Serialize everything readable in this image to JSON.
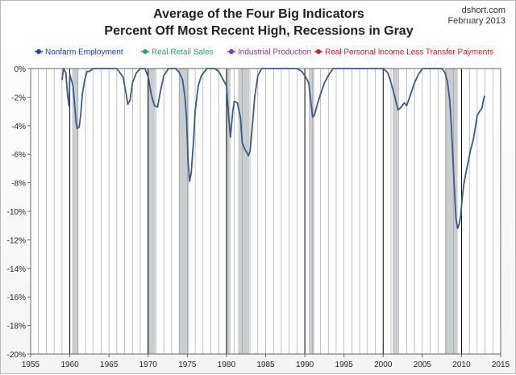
{
  "header": {
    "title_line1": "Average of the Four Big Indicators",
    "title_line2": "Percent Off Most Recent High, Recessions in Gray",
    "source": "dshort.com",
    "date": "February 2013"
  },
  "chart_data": {
    "type": "line",
    "xlim": [
      1955,
      2015
    ],
    "ylim": [
      -20,
      0
    ],
    "x_ticks": [
      1955,
      1960,
      1965,
      1970,
      1975,
      1980,
      1985,
      1990,
      1995,
      2000,
      2005,
      2010,
      2015
    ],
    "x_tick_labels": [
      "1955",
      "1960",
      "1965",
      "1970",
      "1975",
      "1980",
      "1985",
      "1990",
      "1995",
      "2000",
      "2005",
      "2010",
      "2015"
    ],
    "y_ticks": [
      0,
      -2,
      -4,
      -6,
      -8,
      -10,
      -12,
      -14,
      -16,
      -18,
      -20
    ],
    "y_tick_labels": [
      "0%",
      "-2%",
      "-4%",
      "-6%",
      "-8%",
      "-10%",
      "-12%",
      "-14%",
      "-16%",
      "-18%",
      "-20%"
    ],
    "grid": "vertical lines each year",
    "legend_position": "top",
    "legend": [
      {
        "name": "Nonfarm Employment",
        "color": "#1f3cc9"
      },
      {
        "name": "Real Retail Sales",
        "color": "#2aa36b"
      },
      {
        "name": "Industrial Production",
        "color": "#7b3fa0"
      },
      {
        "name": "Real Personal Income Less Transfer Payments",
        "color": "#c0262d"
      }
    ],
    "recessions": [
      [
        1960.3,
        1961.1
      ],
      [
        1969.9,
        1970.9
      ],
      [
        1973.9,
        1975.2
      ],
      [
        1980.0,
        1980.5
      ],
      [
        1981.5,
        1982.9
      ],
      [
        1990.5,
        1991.2
      ],
      [
        2001.2,
        2001.9
      ],
      [
        2007.9,
        2009.5
      ]
    ],
    "recession_color": "#c8cdcf",
    "line_color": "#3a5a8c",
    "series": [
      {
        "values": [
          [
            1959.0,
            -0.8
          ],
          [
            1959.2,
            0
          ],
          [
            1959.5,
            -0.3
          ],
          [
            1959.7,
            -1.8
          ],
          [
            1959.9,
            -2.6
          ],
          [
            1960.0,
            -0.4
          ],
          [
            1960.2,
            -0.8
          ],
          [
            1960.4,
            -1.2
          ],
          [
            1960.6,
            -2.4
          ],
          [
            1960.8,
            -3.8
          ],
          [
            1960.95,
            -4.2
          ],
          [
            1961.2,
            -4.1
          ],
          [
            1961.4,
            -3.2
          ],
          [
            1961.6,
            -1.8
          ],
          [
            1961.9,
            -0.8
          ],
          [
            1962.2,
            -0.2
          ],
          [
            1962.5,
            -0.2
          ],
          [
            1963.0,
            0
          ],
          [
            1964.0,
            0
          ],
          [
            1965.0,
            0
          ],
          [
            1966.0,
            0
          ],
          [
            1966.8,
            -0.6
          ],
          [
            1967.2,
            -1.8
          ],
          [
            1967.4,
            -2.5
          ],
          [
            1967.7,
            -2.2
          ],
          [
            1968.0,
            -1.0
          ],
          [
            1968.5,
            -0.3
          ],
          [
            1969.0,
            0
          ],
          [
            1969.6,
            0
          ],
          [
            1970.0,
            -0.6
          ],
          [
            1970.4,
            -1.8
          ],
          [
            1970.8,
            -2.6
          ],
          [
            1971.2,
            -2.7
          ],
          [
            1971.6,
            -1.5
          ],
          [
            1972.0,
            -0.5
          ],
          [
            1972.6,
            0
          ],
          [
            1973.5,
            0
          ],
          [
            1974.0,
            -0.3
          ],
          [
            1974.4,
            -0.8
          ],
          [
            1974.7,
            -2.0
          ],
          [
            1974.9,
            -3.5
          ],
          [
            1975.1,
            -6.5
          ],
          [
            1975.3,
            -7.9
          ],
          [
            1975.5,
            -7.3
          ],
          [
            1975.8,
            -5.0
          ],
          [
            1976.0,
            -3.0
          ],
          [
            1976.4,
            -1.2
          ],
          [
            1976.8,
            -0.5
          ],
          [
            1977.5,
            0
          ],
          [
            1978.5,
            0
          ],
          [
            1979.0,
            -0.2
          ],
          [
            1979.6,
            -0.8
          ],
          [
            1980.0,
            -1.2
          ],
          [
            1980.3,
            -3.5
          ],
          [
            1980.5,
            -4.8
          ],
          [
            1980.8,
            -3.0
          ],
          [
            1981.0,
            -2.3
          ],
          [
            1981.4,
            -2.4
          ],
          [
            1981.8,
            -3.5
          ],
          [
            1982.0,
            -5.2
          ],
          [
            1982.3,
            -5.6
          ],
          [
            1982.6,
            -5.9
          ],
          [
            1982.8,
            -6.1
          ],
          [
            1983.0,
            -5.8
          ],
          [
            1983.3,
            -4.0
          ],
          [
            1983.6,
            -2.0
          ],
          [
            1984.0,
            -0.5
          ],
          [
            1984.5,
            0
          ],
          [
            1985.0,
            0
          ],
          [
            1986.0,
            0
          ],
          [
            1987.0,
            0
          ],
          [
            1988.0,
            0
          ],
          [
            1989.0,
            0
          ],
          [
            1989.6,
            -0.2
          ],
          [
            1990.0,
            -0.5
          ],
          [
            1990.5,
            -1.0
          ],
          [
            1990.8,
            -2.5
          ],
          [
            1991.0,
            -3.4
          ],
          [
            1991.2,
            -3.3
          ],
          [
            1991.6,
            -2.5
          ],
          [
            1992.0,
            -1.8
          ],
          [
            1992.5,
            -1.0
          ],
          [
            1993.0,
            -0.5
          ],
          [
            1993.6,
            0
          ],
          [
            1995.0,
            0
          ],
          [
            1996.0,
            0
          ],
          [
            1997.0,
            0
          ],
          [
            1998.0,
            0
          ],
          [
            1999.0,
            0
          ],
          [
            2000.0,
            0
          ],
          [
            2000.6,
            -0.3
          ],
          [
            2001.0,
            -1.0
          ],
          [
            2001.5,
            -2.0
          ],
          [
            2001.9,
            -2.9
          ],
          [
            2002.3,
            -2.7
          ],
          [
            2002.7,
            -2.4
          ],
          [
            2003.0,
            -2.6
          ],
          [
            2003.5,
            -1.8
          ],
          [
            2004.0,
            -1.0
          ],
          [
            2004.5,
            -0.4
          ],
          [
            2005.0,
            0
          ],
          [
            2006.0,
            0
          ],
          [
            2007.0,
            0
          ],
          [
            2007.5,
            0
          ],
          [
            2007.9,
            -0.3
          ],
          [
            2008.2,
            -0.9
          ],
          [
            2008.5,
            -2.2
          ],
          [
            2008.7,
            -4.0
          ],
          [
            2008.9,
            -6.2
          ],
          [
            2009.1,
            -8.6
          ],
          [
            2009.3,
            -10.5
          ],
          [
            2009.5,
            -11.2
          ],
          [
            2009.7,
            -10.9
          ],
          [
            2009.9,
            -10.3
          ],
          [
            2010.1,
            -9.0
          ],
          [
            2010.3,
            -8.1
          ],
          [
            2010.6,
            -7.2
          ],
          [
            2010.9,
            -6.4
          ],
          [
            2011.2,
            -5.6
          ],
          [
            2011.5,
            -5.0
          ],
          [
            2011.8,
            -4.0
          ],
          [
            2012.0,
            -3.3
          ],
          [
            2012.3,
            -3.0
          ],
          [
            2012.6,
            -2.8
          ],
          [
            2012.8,
            -2.2
          ],
          [
            2012.95,
            -1.9
          ]
        ]
      }
    ]
  }
}
